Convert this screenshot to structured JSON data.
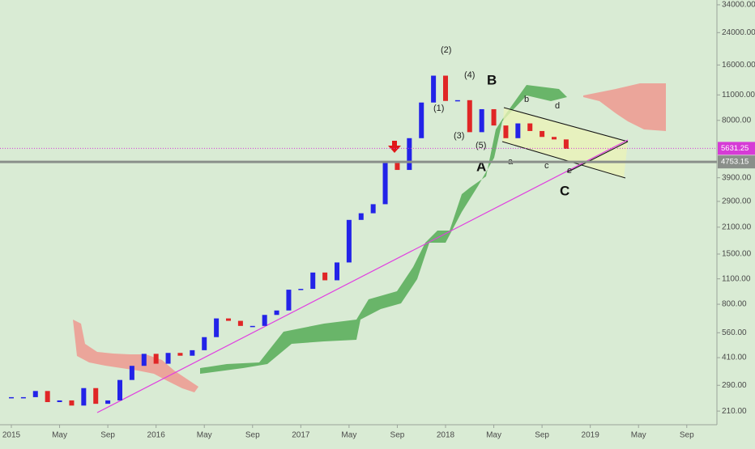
{
  "chart_data": {
    "type": "candlestick",
    "x": [
      0,
      1,
      2,
      3,
      4,
      5,
      6,
      7,
      8,
      9,
      10,
      11,
      12,
      13,
      14,
      15,
      16,
      17,
      18,
      19,
      20,
      21,
      22,
      23,
      24,
      25,
      26,
      27,
      28,
      29,
      30,
      31,
      32,
      33,
      34,
      35,
      36,
      37,
      38,
      39,
      40,
      41,
      42,
      43,
      44,
      45,
      46
    ],
    "close": [
      250,
      250,
      270,
      235,
      240,
      225,
      280,
      230,
      240,
      310,
      370,
      430,
      380,
      435,
      420,
      450,
      530,
      670,
      650,
      610,
      610,
      700,
      740,
      960,
      970,
      1190,
      1080,
      1350,
      2300,
      2500,
      2800,
      4700,
      4300,
      6400,
      10000,
      14000,
      10200,
      10300,
      6900,
      9200,
      7500,
      6400,
      7700,
      7000,
      6500,
      6300,
      5600
    ],
    "up_color": "#2323e8",
    "down_color": "#e02626",
    "log_scale": true,
    "ylim": [
      177,
      36100
    ],
    "yticks": [
      {
        "value": 210,
        "label": "210.00"
      },
      {
        "value": 290,
        "label": "290.00"
      },
      {
        "value": 410,
        "label": "410.00"
      },
      {
        "value": 560,
        "label": "560.00"
      },
      {
        "value": 800,
        "label": "800.00"
      },
      {
        "value": 1100,
        "label": "1100.00"
      },
      {
        "value": 1500,
        "label": "1500.00"
      },
      {
        "value": 2100,
        "label": "2100.00"
      },
      {
        "value": 2900,
        "label": "2900.00"
      },
      {
        "value": 3900,
        "label": "3900.00"
      },
      {
        "value": 8000,
        "label": "8000.00"
      },
      {
        "value": 11000,
        "label": "11000.00"
      },
      {
        "value": 16000,
        "label": "16000.00"
      },
      {
        "value": 24000,
        "label": "24000.00"
      },
      {
        "value": 34000,
        "label": "34000.00"
      }
    ],
    "xlim": [
      -0.94,
      58.5
    ],
    "xticks": [
      {
        "value": 0,
        "label": "2015"
      },
      {
        "value": 4,
        "label": "May"
      },
      {
        "value": 8,
        "label": "Sep"
      },
      {
        "value": 12,
        "label": "2016"
      },
      {
        "value": 16,
        "label": "May"
      },
      {
        "value": 20,
        "label": "Sep"
      },
      {
        "value": 24,
        "label": "2017"
      },
      {
        "value": 28,
        "label": "May"
      },
      {
        "value": 32,
        "label": "Sep"
      },
      {
        "value": 36,
        "label": "2018"
      },
      {
        "value": 40,
        "label": "May"
      },
      {
        "value": 44,
        "label": "Sep"
      },
      {
        "value": 48,
        "label": "2019"
      },
      {
        "value": 52,
        "label": "May"
      },
      {
        "value": 56,
        "label": "Sep"
      }
    ],
    "price_lines": [
      {
        "value": 5631.25,
        "color": "#d63bd6"
      },
      {
        "value": 4753.15,
        "color": "#8a8f8a"
      }
    ],
    "annotations": [
      "(1)",
      "(2)",
      "(3)",
      "(4)",
      "(5)",
      "A",
      "B",
      "C",
      "a",
      "b",
      "c",
      "d",
      "e"
    ]
  }
}
